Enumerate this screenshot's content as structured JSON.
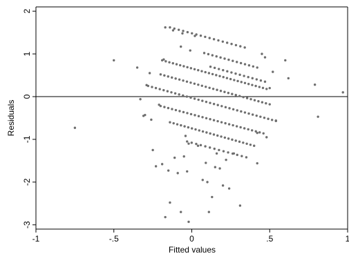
{
  "chart_data": {
    "type": "scatter",
    "xlabel": "Fitted values",
    "ylabel": "Residuals",
    "xlim": [
      -1.0,
      1.0
    ],
    "ylim": [
      -3.1,
      2.1
    ],
    "xticks": [
      {
        "value": -1,
        "label": "-1"
      },
      {
        "value": -0.5,
        "label": "-.5"
      },
      {
        "value": 0,
        "label": "0"
      },
      {
        "value": 0.5,
        "label": ".5"
      },
      {
        "value": 1,
        "label": "1"
      }
    ],
    "yticks": [
      {
        "value": 2,
        "label": "2"
      },
      {
        "value": 1,
        "label": "1"
      },
      {
        "value": 0,
        "label": "0"
      },
      {
        "value": -1,
        "label": "-1"
      },
      {
        "value": -2,
        "label": "-2"
      },
      {
        "value": -3,
        "label": "-3"
      }
    ],
    "reference_line_y": 0,
    "grid": false,
    "marker_color": "#6e6e6e",
    "points": [
      [
        -0.75,
        -0.73
      ],
      [
        -0.5,
        0.85
      ],
      [
        -0.35,
        0.68
      ],
      [
        -0.33,
        -0.06
      ],
      [
        -0.31,
        -0.45
      ],
      [
        -0.3,
        -0.43
      ],
      [
        -0.29,
        0.27
      ],
      [
        -0.27,
        0.55
      ],
      [
        -0.26,
        -0.54
      ],
      [
        -0.25,
        -1.25
      ],
      [
        -0.23,
        -1.63
      ],
      [
        -0.21,
        -0.19
      ],
      [
        -0.19,
        -1.58
      ],
      [
        -0.18,
        0.87
      ],
      [
        -0.17,
        1.62
      ],
      [
        -0.17,
        -2.82
      ],
      [
        -0.15,
        -1.73
      ],
      [
        -0.14,
        -2.48
      ],
      [
        -0.12,
        1.55
      ],
      [
        -0.11,
        -1.43
      ],
      [
        -0.09,
        -1.79
      ],
      [
        -0.07,
        1.17
      ],
      [
        -0.07,
        -2.7
      ],
      [
        -0.06,
        1.48
      ],
      [
        -0.05,
        -1.4
      ],
      [
        -0.04,
        -0.92
      ],
      [
        -0.03,
        -1.75
      ],
      [
        -0.02,
        -2.93
      ],
      [
        -0.02,
        -1.1
      ],
      [
        -0.01,
        1.08
      ],
      [
        0.02,
        1.42
      ],
      [
        0.04,
        -1.15
      ],
      [
        0.07,
        -1.95
      ],
      [
        0.09,
        -1.55
      ],
      [
        0.1,
        -2.0
      ],
      [
        0.11,
        -2.7
      ],
      [
        0.13,
        -2.35
      ],
      [
        0.15,
        -1.65
      ],
      [
        0.16,
        -1.33
      ],
      [
        0.18,
        -1.68
      ],
      [
        0.2,
        -2.08
      ],
      [
        0.22,
        -1.48
      ],
      [
        0.24,
        -2.15
      ],
      [
        0.27,
        -1.33
      ],
      [
        0.31,
        -2.55
      ],
      [
        0.42,
        -1.56
      ],
      [
        0.45,
        1.0
      ],
      [
        0.47,
        0.92
      ],
      [
        0.52,
        0.58
      ],
      [
        0.54,
        -0.56
      ],
      [
        0.6,
        0.85
      ],
      [
        0.62,
        0.43
      ],
      [
        0.79,
        0.28
      ],
      [
        0.81,
        -0.47
      ],
      [
        0.97,
        0.1
      ],
      [
        0.5,
        0.2
      ],
      [
        0.42,
        -0.85
      ],
      [
        0.48,
        -0.95
      ]
    ],
    "bands": [
      {
        "x0": -0.14,
        "x1": 0.34,
        "y0": 1.62,
        "y1": 1.15,
        "n": 18
      },
      {
        "x0": -0.19,
        "x1": 0.48,
        "y0": 0.85,
        "y1": 0.18,
        "n": 30
      },
      {
        "x0": -0.2,
        "x1": 0.5,
        "y0": 0.52,
        "y1": -0.18,
        "n": 30
      },
      {
        "x0": -0.28,
        "x1": 0.54,
        "y0": 0.25,
        "y1": -0.57,
        "n": 34
      },
      {
        "x0": -0.2,
        "x1": 0.46,
        "y0": -0.22,
        "y1": -0.86,
        "n": 28
      },
      {
        "x0": -0.14,
        "x1": 0.4,
        "y0": -0.6,
        "y1": -1.15,
        "n": 24
      },
      {
        "x0": -0.03,
        "x1": 0.35,
        "y0": -1.05,
        "y1": -1.42,
        "n": 14
      },
      {
        "x0": 0.08,
        "x1": 0.42,
        "y0": 1.02,
        "y1": 0.68,
        "n": 14
      },
      {
        "x0": 0.12,
        "x1": 0.47,
        "y0": 0.7,
        "y1": 0.35,
        "n": 14
      }
    ]
  }
}
